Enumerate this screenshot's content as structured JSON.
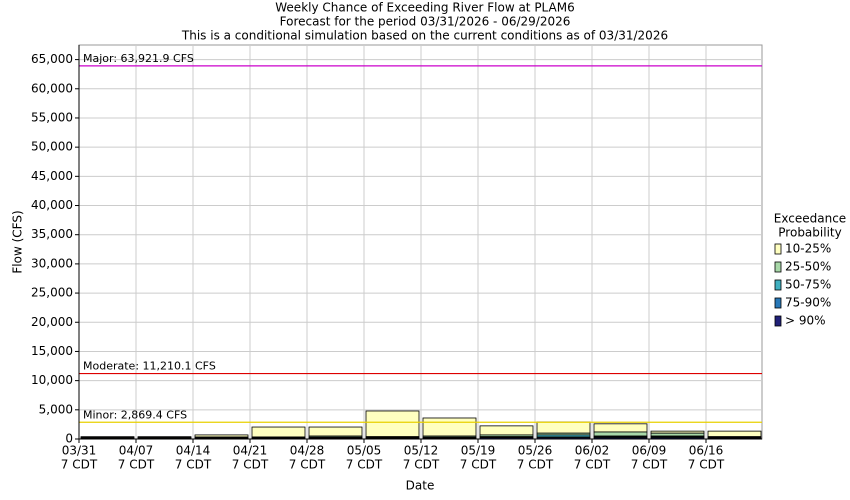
{
  "chart_data": {
    "type": "floating-bar",
    "title": [
      "Weekly Chance of Exceeding River Flow at PLAM6",
      "Forecast for the period 03/31/2026 - 06/29/2026",
      "This is a conditional simulation based on the current conditions as of 03/31/2026"
    ],
    "x_label": "Date",
    "y_label": "Flow (CFS)",
    "categories": [
      "03/31",
      "04/07",
      "04/14",
      "04/21",
      "04/28",
      "05/05",
      "05/12",
      "05/19",
      "05/26",
      "06/02",
      "06/09",
      "06/16"
    ],
    "category_times": [
      "7 CDT",
      "7 CDT",
      "7 CDT",
      "7 CDT",
      "7 CDT",
      "7 CDT",
      "7 CDT",
      "7 CDT",
      "7 CDT",
      "7 CDT",
      "7 CDT",
      "7 CDT"
    ],
    "legend_title": [
      "Exceedance",
      "Probability"
    ],
    "series": [
      {
        "name": "10-25%",
        "color": "#ffffc0",
        "values": [
          400,
          400,
          700,
          2050,
          2050,
          4800,
          3600,
          2250,
          2900,
          2600,
          1350,
          1350
        ]
      },
      {
        "name": "25-50%",
        "color": "#a8d8a8",
        "values": [
          250,
          250,
          350,
          350,
          500,
          400,
          500,
          700,
          1000,
          1200,
          1000,
          400
        ]
      },
      {
        "name": "50-75%",
        "color": "#40b0c0",
        "values": [
          200,
          200,
          250,
          250,
          300,
          300,
          300,
          400,
          700,
          500,
          500,
          300
        ]
      },
      {
        "name": "75-90%",
        "color": "#2878b8",
        "values": [
          150,
          150,
          200,
          200,
          200,
          200,
          200,
          300,
          350,
          350,
          350,
          200
        ]
      },
      {
        "name": "> 90%",
        "color": "#202078",
        "values": [
          100,
          100,
          150,
          150,
          150,
          150,
          150,
          200,
          200,
          200,
          200,
          150
        ]
      }
    ],
    "thresholds": [
      {
        "label": "Major: 63,921.9 CFS",
        "value": 63921.9,
        "color": "#cc00cc"
      },
      {
        "label": "Moderate: 11,210.1 CFS",
        "value": 11210.1,
        "color": "#dd0000"
      },
      {
        "label": "Minor: 2,869.4 CFS",
        "value": 2869.4,
        "color": "#e8d000"
      }
    ],
    "ylim": [
      0,
      67500
    ],
    "yticks": [
      0,
      {
        "value": 5000,
        "label": "5,000"
      },
      {
        "value": 10000,
        "label": "10,000"
      },
      {
        "value": 15000,
        "label": "15,000"
      },
      {
        "value": 20000,
        "label": "20,000"
      },
      {
        "value": 25000,
        "label": "25,000"
      },
      {
        "value": 30000,
        "label": "30,000"
      },
      {
        "value": 35000,
        "label": "35,000"
      },
      {
        "value": 40000,
        "label": "40,000"
      },
      {
        "value": 45000,
        "label": "45,000"
      },
      {
        "value": 50000,
        "label": "50,000"
      },
      {
        "value": 55000,
        "label": "55,000"
      },
      {
        "value": 60000,
        "label": "60,000"
      },
      {
        "value": 65000,
        "label": "65,000"
      }
    ],
    "grid": true
  }
}
